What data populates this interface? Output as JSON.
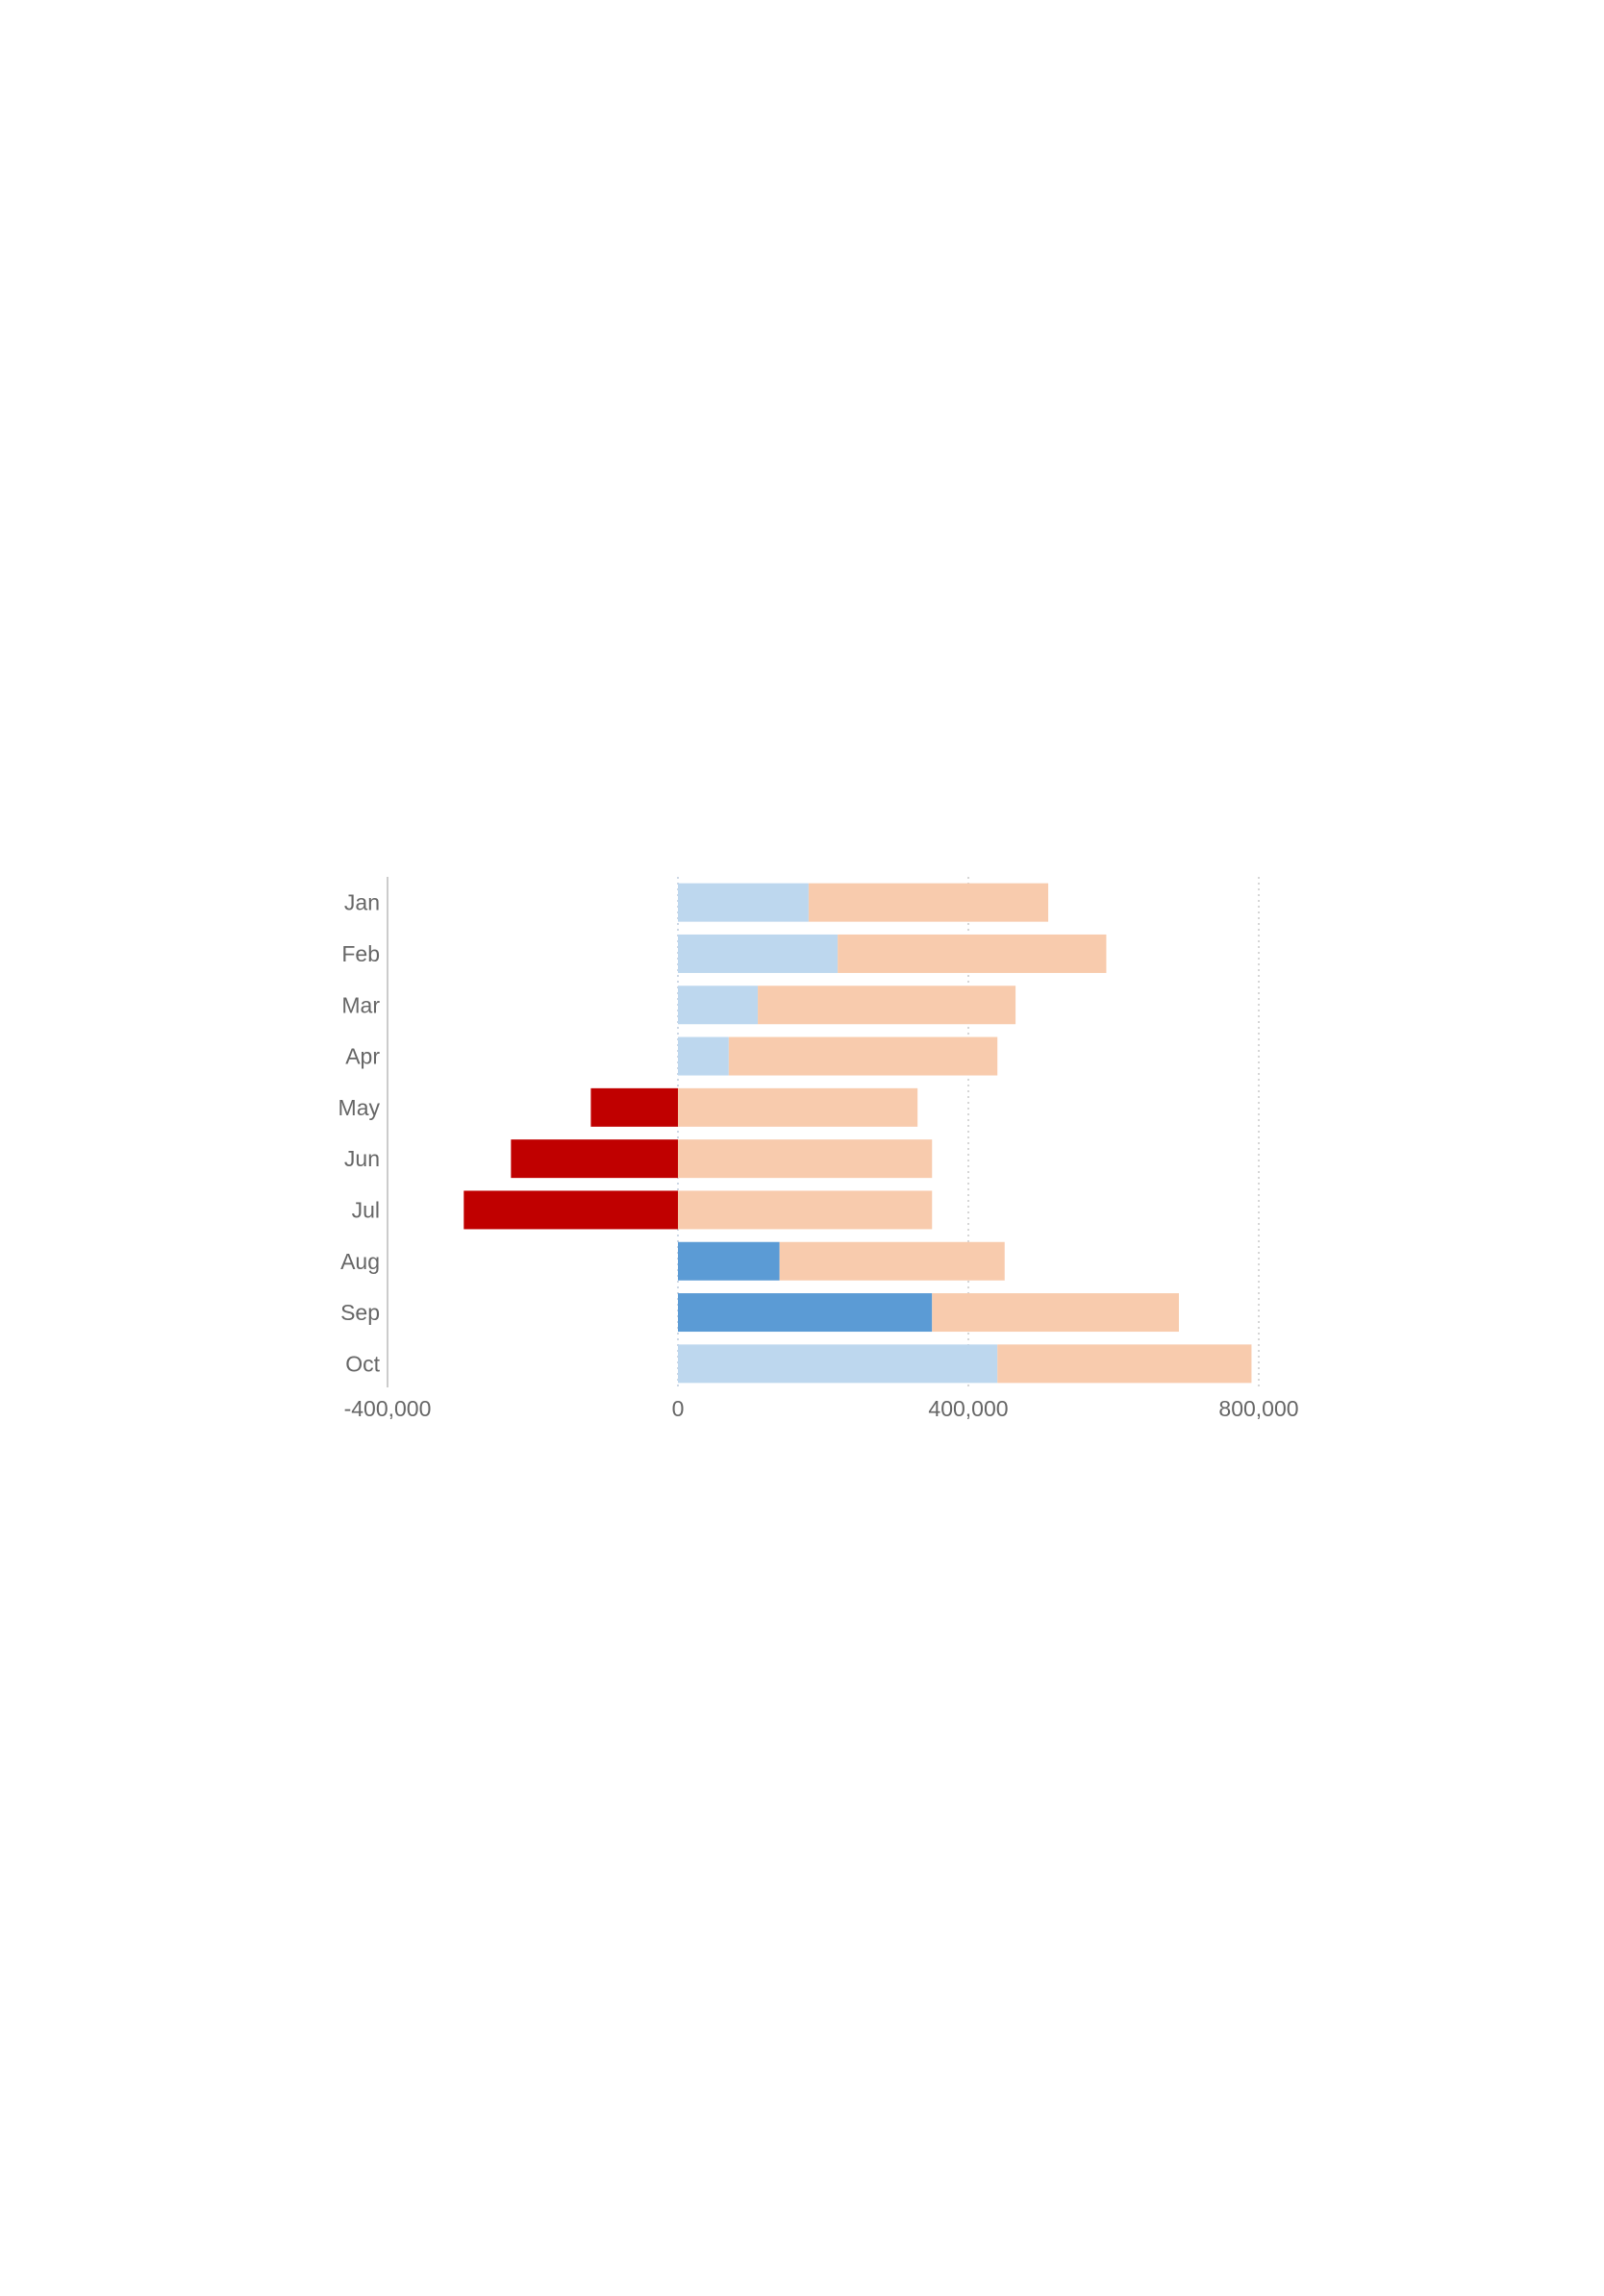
{
  "chart_data": {
    "type": "bar",
    "orientation": "horizontal",
    "stacked": true,
    "categories": [
      "Jan",
      "Feb",
      "Mar",
      "Apr",
      "May",
      "Jun",
      "Jul",
      "Aug",
      "Sep",
      "Oct"
    ],
    "series": [
      {
        "values": [
          180000,
          220000,
          110000,
          70000,
          -120000,
          -230000,
          -295000,
          140000,
          350000,
          440000
        ],
        "colors": [
          "#bdd7ee",
          "#bdd7ee",
          "#bdd7ee",
          "#bdd7ee",
          "#c00000",
          "#c00000",
          "#c00000",
          "#5b9bd5",
          "#5b9bd5",
          "#bdd7ee"
        ]
      },
      {
        "values": [
          330000,
          370000,
          355000,
          370000,
          330000,
          350000,
          350000,
          310000,
          340000,
          350000
        ],
        "color": "#f8cbad"
      }
    ],
    "xticks": [
      -400000,
      0,
      400000,
      800000
    ],
    "xtick_labels": [
      "-400,000",
      "0",
      "400,000",
      "800,000"
    ],
    "xlim": [
      -400000,
      800000
    ],
    "grid": "vertical-dotted",
    "title": "",
    "xlabel": "",
    "ylabel": ""
  }
}
